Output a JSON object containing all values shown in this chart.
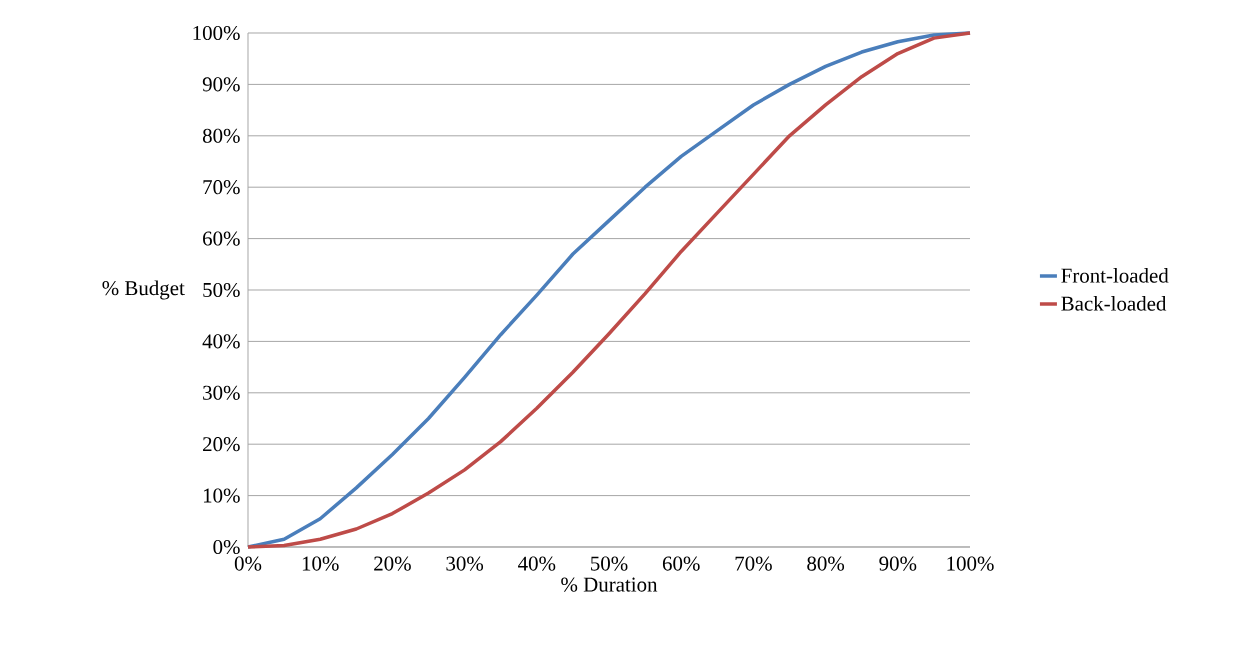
{
  "chart_data": {
    "type": "line",
    "xlabel": "% Duration",
    "ylabel": "% Budget",
    "x": [
      0,
      5,
      10,
      15,
      20,
      25,
      30,
      35,
      40,
      45,
      50,
      55,
      60,
      65,
      70,
      75,
      80,
      85,
      90,
      95,
      100
    ],
    "series": [
      {
        "name": "Front-loaded",
        "color": "#4a7ebb",
        "values": [
          0,
          1.5,
          5.5,
          11.5,
          18,
          25,
          33,
          41.3,
          49,
          57,
          63.5,
          70,
          76,
          81,
          86,
          90,
          93.5,
          96.3,
          98.3,
          99.6,
          100
        ]
      },
      {
        "name": "Back-loaded",
        "color": "#be4b48",
        "values": [
          0,
          0.3,
          1.5,
          3.5,
          6.5,
          10.5,
          15,
          20.5,
          27,
          34,
          41.5,
          49.3,
          57.5,
          65,
          72.5,
          80,
          86,
          91.5,
          96,
          99,
          100
        ]
      }
    ],
    "xlim": [
      0,
      100
    ],
    "ylim": [
      0,
      100
    ],
    "xticks": [
      {
        "value": 0,
        "label": "0%"
      },
      {
        "value": 10,
        "label": "10%"
      },
      {
        "value": 20,
        "label": "20%"
      },
      {
        "value": 30,
        "label": "30%"
      },
      {
        "value": 40,
        "label": "40%"
      },
      {
        "value": 50,
        "label": "50%"
      },
      {
        "value": 60,
        "label": "60%"
      },
      {
        "value": 70,
        "label": "70%"
      },
      {
        "value": 80,
        "label": "80%"
      },
      {
        "value": 90,
        "label": "90%"
      },
      {
        "value": 100,
        "label": "100%"
      }
    ],
    "yticks": [
      {
        "value": 0,
        "label": "0%"
      },
      {
        "value": 10,
        "label": "10%"
      },
      {
        "value": 20,
        "label": "20%"
      },
      {
        "value": 30,
        "label": "30%"
      },
      {
        "value": 40,
        "label": "40%"
      },
      {
        "value": 50,
        "label": "50%"
      },
      {
        "value": 60,
        "label": "60%"
      },
      {
        "value": 70,
        "label": "70%"
      },
      {
        "value": 80,
        "label": "80%"
      },
      {
        "value": 90,
        "label": "90%"
      },
      {
        "value": 100,
        "label": "100%"
      }
    ],
    "grid": "y",
    "legend": "right",
    "marker": "none",
    "line_style": "solid"
  }
}
